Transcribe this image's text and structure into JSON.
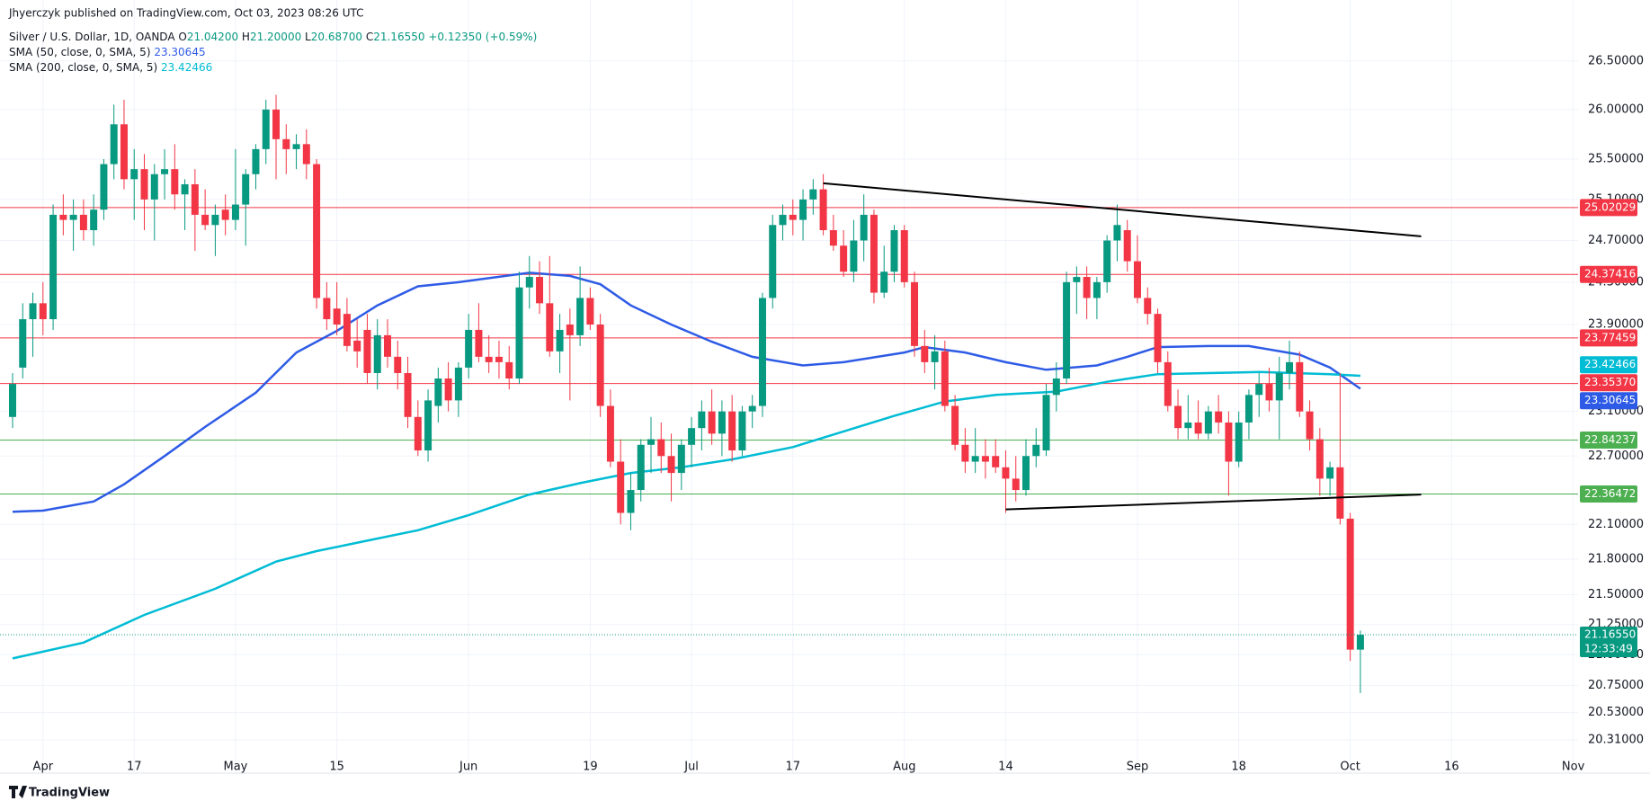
{
  "chart_data": {
    "type": "candlestick",
    "header": "Jhyerczyk published on TradingView.com, Oct 03, 2023 08:26 UTC",
    "legend": {
      "symbol": "Silver / U.S. Dollar, 1D, OANDA",
      "fields": [
        {
          "key": "O",
          "value": "21.04200"
        },
        {
          "key": "H",
          "value": "21.20000"
        },
        {
          "key": "L",
          "value": "20.68700"
        },
        {
          "key": "C",
          "value": "21.16550"
        }
      ],
      "change": "+0.12350 (+0.59%)"
    },
    "countdown": "12:33:49",
    "footer": "TradingView",
    "log": true,
    "grid": true,
    "up_color": "#089981",
    "down_color": "#f23645",
    "ylim": [
      20.19,
      27.14
    ],
    "yticks": [
      {
        "value": 26.5,
        "label": "26.50000"
      },
      {
        "value": 26,
        "label": "26.00000"
      },
      {
        "value": 25.5,
        "label": "25.50000"
      },
      {
        "value": 25.1,
        "label": "25.10000"
      },
      {
        "value": 24.7,
        "label": "24.70000"
      },
      {
        "value": 24.3,
        "label": "24.30000"
      },
      {
        "value": 23.9,
        "label": "23.90000"
      },
      {
        "value": 23.1,
        "label": "23.10000"
      },
      {
        "value": 22.7,
        "label": "22.70000"
      },
      {
        "value": 22.1,
        "label": "22.10000"
      },
      {
        "value": 21.8,
        "label": "21.80000"
      },
      {
        "value": 21.5,
        "label": "21.50000"
      },
      {
        "value": 21.25,
        "label": "21.25000"
      },
      {
        "value": 21,
        "label": "21.00000"
      },
      {
        "value": 20.75,
        "label": "20.75000"
      },
      {
        "value": 20.53,
        "label": "20.53000"
      },
      {
        "value": 20.31,
        "label": "20.31000"
      }
    ],
    "categories": [
      null,
      null,
      null,
      "Apr",
      null,
      null,
      null,
      null,
      null,
      null,
      null,
      null,
      "17",
      null,
      null,
      null,
      null,
      null,
      null,
      null,
      null,
      null,
      "May",
      null,
      null,
      null,
      null,
      null,
      null,
      null,
      null,
      null,
      "15",
      null,
      null,
      null,
      null,
      null,
      null,
      null,
      null,
      null,
      null,
      null,
      null,
      "Jun",
      null,
      null,
      null,
      null,
      null,
      null,
      null,
      null,
      null,
      null,
      null,
      "19",
      null,
      null,
      null,
      null,
      null,
      null,
      null,
      null,
      null,
      "Jul",
      null,
      null,
      null,
      null,
      null,
      null,
      null,
      null,
      null,
      "17",
      null,
      null,
      null,
      null,
      null,
      null,
      null,
      null,
      null,
      null,
      "Aug",
      null,
      null,
      null,
      null,
      null,
      null,
      null,
      null,
      null,
      "14",
      null,
      null,
      null,
      null,
      null,
      null,
      null,
      null,
      null,
      null,
      null,
      null,
      "Sep",
      null,
      null,
      null,
      null,
      null,
      null,
      null,
      null,
      null,
      "18",
      null,
      null,
      null,
      null,
      null,
      null,
      null,
      null,
      null,
      null,
      "Oct",
      null,
      null,
      null,
      null,
      null,
      null,
      null,
      null,
      null,
      "16",
      null,
      null,
      null,
      null,
      null,
      null,
      null,
      null,
      null,
      null,
      null,
      "Nov"
    ],
    "open": [
      23.05,
      23.5,
      23.95,
      24.1,
      23.95,
      24.95,
      24.9,
      24.95,
      24.8,
      25.0,
      25.45,
      25.85,
      25.3,
      25.4,
      25.1,
      25.35,
      25.4,
      25.15,
      25.25,
      24.95,
      24.85,
      25.0,
      24.9,
      25.05,
      25.35,
      25.6,
      26.0,
      25.7,
      25.6,
      25.65,
      25.45,
      24.15,
      24.05,
      24.0,
      23.75,
      23.85,
      23.45,
      23.8,
      23.6,
      23.45,
      23.05,
      22.75,
      23.15,
      23.4,
      23.2,
      23.5,
      23.85,
      23.6,
      23.6,
      23.55,
      23.4,
      24.25,
      24.35,
      24.1,
      23.65,
      23.9,
      23.8,
      24.15,
      23.9,
      23.15,
      22.65,
      22.2,
      22.4,
      22.8,
      22.85,
      22.7,
      22.55,
      22.8,
      22.95,
      23.1,
      22.9,
      23.1,
      22.75,
      23.1,
      23.15,
      24.15,
      24.85,
      24.95,
      24.9,
      25.1,
      25.2,
      24.8,
      24.65,
      24.4,
      24.7,
      24.95,
      24.2,
      24.4,
      24.8,
      24.3,
      23.7,
      23.55,
      23.65,
      23.15,
      22.8,
      22.65,
      22.7,
      22.7,
      22.6,
      22.5,
      22.4,
      22.7,
      22.75,
      23.25,
      23.4,
      24.3,
      24.35,
      24.15,
      24.3,
      24.7,
      24.8,
      24.5,
      24.15,
      24.0,
      23.55,
      23.15,
      22.95,
      23.0,
      22.9,
      23.1,
      23.0,
      22.65,
      23.0,
      23.25,
      23.35,
      23.2,
      23.45,
      23.55,
      23.1,
      22.85,
      22.5,
      22.6,
      22.15,
      21.042,
      null,
      null,
      null,
      null,
      null,
      null,
      null,
      null,
      null,
      null,
      null,
      null,
      null,
      null,
      null,
      null,
      null,
      null,
      null,
      null,
      null
    ],
    "high": [
      23.45,
      24.1,
      24.2,
      24.3,
      25.05,
      25.15,
      25.1,
      25.1,
      25.15,
      25.5,
      26.05,
      26.1,
      25.6,
      25.55,
      25.45,
      25.6,
      25.65,
      25.3,
      25.4,
      25.2,
      25.05,
      25.15,
      25.6,
      25.4,
      25.65,
      26.1,
      26.15,
      25.85,
      25.75,
      25.8,
      25.5,
      24.3,
      24.3,
      24.15,
      23.95,
      24.0,
      23.95,
      23.95,
      23.75,
      23.6,
      23.2,
      23.3,
      23.5,
      23.55,
      23.55,
      24.0,
      24.1,
      23.8,
      23.75,
      23.7,
      24.4,
      24.55,
      24.5,
      24.55,
      24.0,
      24.05,
      24.45,
      24.25,
      24.0,
      23.3,
      22.85,
      22.55,
      22.85,
      23.05,
      23.0,
      22.9,
      22.85,
      23.05,
      23.2,
      23.3,
      23.2,
      23.25,
      23.15,
      23.25,
      24.2,
      24.95,
      25.05,
      25.1,
      25.2,
      25.3,
      25.35,
      24.95,
      24.8,
      24.9,
      25.15,
      25.0,
      24.65,
      24.85,
      24.85,
      24.4,
      23.85,
      23.8,
      23.75,
      23.25,
      22.95,
      22.95,
      22.85,
      22.85,
      22.75,
      22.7,
      22.85,
      22.95,
      23.35,
      23.55,
      24.4,
      24.45,
      24.45,
      24.35,
      24.75,
      25.05,
      24.9,
      24.75,
      24.25,
      24.05,
      23.65,
      23.3,
      23.25,
      23.2,
      23.15,
      23.25,
      23.1,
      23.1,
      23.3,
      23.45,
      23.5,
      23.6,
      23.75,
      23.65,
      23.2,
      22.95,
      22.65,
      23.45,
      22.2,
      21.2,
      null,
      null,
      null,
      null,
      null,
      null,
      null,
      null,
      null,
      null,
      null,
      null,
      null,
      null,
      null,
      null,
      null,
      null,
      null,
      null,
      null
    ],
    "low": [
      22.95,
      23.4,
      23.6,
      23.8,
      23.85,
      24.75,
      24.6,
      24.7,
      24.65,
      24.9,
      25.3,
      25.2,
      24.9,
      24.8,
      24.7,
      25.1,
      25.0,
      24.8,
      24.6,
      24.8,
      24.55,
      24.75,
      24.8,
      24.65,
      25.2,
      25.45,
      25.3,
      25.35,
      25.4,
      25.3,
      24.05,
      23.85,
      23.8,
      23.65,
      23.5,
      23.35,
      23.3,
      23.5,
      23.3,
      22.95,
      22.7,
      22.65,
      23.0,
      23.1,
      23.05,
      23.4,
      23.55,
      23.45,
      23.4,
      23.3,
      23.35,
      24.05,
      24.0,
      23.6,
      23.45,
      23.2,
      23.7,
      23.85,
      23.05,
      22.6,
      22.1,
      22.05,
      22.3,
      22.55,
      22.55,
      22.3,
      22.4,
      22.6,
      22.75,
      22.8,
      22.7,
      22.65,
      22.7,
      22.95,
      23.05,
      24.05,
      24.7,
      24.75,
      24.7,
      24.95,
      24.75,
      24.6,
      24.35,
      24.3,
      24.5,
      24.1,
      24.15,
      24.3,
      24.25,
      23.6,
      23.45,
      23.3,
      23.1,
      22.75,
      22.55,
      22.55,
      22.5,
      22.55,
      22.2,
      22.3,
      22.35,
      22.6,
      22.7,
      23.1,
      23.35,
      24.0,
      23.95,
      23.95,
      24.2,
      24.5,
      24.4,
      24.1,
      23.9,
      23.45,
      23.1,
      22.85,
      22.85,
      22.85,
      22.85,
      22.9,
      22.35,
      22.6,
      22.85,
      23.05,
      23.1,
      22.85,
      23.3,
      23.05,
      22.75,
      22.35,
      22.35,
      22.1,
      20.95,
      20.687,
      null,
      null,
      null,
      null,
      null,
      null,
      null,
      null,
      null,
      null,
      null,
      null,
      null,
      null,
      null,
      null,
      null,
      null,
      null,
      null,
      null
    ],
    "close": [
      23.35,
      23.95,
      24.1,
      23.95,
      24.95,
      24.9,
      24.95,
      24.8,
      25.0,
      25.45,
      25.85,
      25.3,
      25.4,
      25.1,
      25.35,
      25.4,
      25.15,
      25.25,
      24.95,
      24.85,
      24.95,
      24.9,
      25.05,
      25.35,
      25.6,
      26.0,
      25.7,
      25.6,
      25.65,
      25.45,
      24.15,
      23.95,
      23.9,
      23.7,
      23.65,
      23.45,
      23.8,
      23.6,
      23.45,
      23.05,
      22.75,
      23.2,
      23.4,
      23.2,
      23.5,
      23.85,
      23.6,
      23.55,
      23.55,
      23.4,
      24.25,
      24.35,
      24.1,
      23.65,
      23.85,
      23.8,
      24.15,
      23.9,
      23.15,
      22.65,
      22.2,
      22.4,
      22.8,
      22.85,
      22.7,
      22.55,
      22.8,
      22.95,
      23.1,
      22.9,
      23.1,
      22.75,
      23.1,
      23.15,
      24.15,
      24.85,
      24.95,
      24.9,
      25.1,
      25.2,
      24.8,
      24.65,
      24.4,
      24.7,
      24.95,
      24.2,
      24.4,
      24.8,
      24.3,
      23.7,
      23.55,
      23.65,
      23.15,
      22.8,
      22.65,
      22.7,
      22.65,
      22.6,
      22.5,
      22.4,
      22.7,
      22.8,
      23.25,
      23.4,
      24.3,
      24.35,
      24.15,
      24.3,
      24.7,
      24.85,
      24.5,
      24.15,
      24.0,
      23.55,
      23.15,
      22.95,
      23.0,
      22.9,
      23.1,
      23.0,
      22.65,
      23.0,
      23.25,
      23.35,
      23.2,
      23.45,
      23.55,
      23.1,
      22.85,
      22.5,
      22.6,
      22.15,
      21.042,
      21.1655,
      null,
      null,
      null,
      null,
      null,
      null,
      null,
      null,
      null,
      null,
      null,
      null,
      null,
      null,
      null,
      null,
      null,
      null,
      null,
      null,
      null
    ],
    "series": [
      {
        "name": "SMA (50, close, 0, SMA, 5)",
        "color": "#2e5be6",
        "x": [
          0,
          3,
          8,
          11,
          15,
          19,
          24,
          28,
          32,
          36,
          40,
          44,
          51,
          55,
          58,
          61,
          65,
          69,
          73,
          78,
          82,
          88,
          90,
          94,
          98,
          102,
          107,
          110,
          113,
          118,
          122,
          127,
          130,
          133
        ],
        "values": [
          22.21,
          22.22,
          22.3,
          22.45,
          22.7,
          22.96,
          23.27,
          23.64,
          23.84,
          24.08,
          24.26,
          24.3,
          24.39,
          24.36,
          24.28,
          24.08,
          23.9,
          23.74,
          23.6,
          23.52,
          23.55,
          23.64,
          23.69,
          23.64,
          23.55,
          23.48,
          23.52,
          23.6,
          23.69,
          23.7,
          23.7,
          23.62,
          23.5,
          23.30645
        ]
      },
      {
        "name": "SMA (200, close, 0, SMA, 5)",
        "color": "#00bcd4",
        "x": [
          0,
          7,
          13,
          20,
          26,
          30,
          35,
          40,
          45,
          51,
          56,
          61,
          66,
          71,
          77,
          82,
          87,
          92,
          97,
          103,
          108,
          113,
          118,
          123,
          130,
          133
        ],
        "values": [
          20.97,
          21.1,
          21.33,
          21.55,
          21.78,
          21.87,
          21.96,
          22.05,
          22.18,
          22.36,
          22.46,
          22.55,
          22.6,
          22.67,
          22.78,
          22.92,
          23.06,
          23.19,
          23.25,
          23.28,
          23.37,
          23.44,
          23.45,
          23.46,
          23.44,
          23.42466
        ]
      }
    ],
    "levels": [
      {
        "value": 25.02029,
        "label": "25.02029",
        "color": "#f23645"
      },
      {
        "value": 24.37416,
        "label": "24.37416",
        "color": "#f23645"
      },
      {
        "value": 23.77459,
        "label": "23.77459",
        "color": "#f23645"
      },
      {
        "value": 23.3537,
        "label": "23.35370",
        "color": "#f23645"
      },
      {
        "value": 22.84237,
        "label": "22.84237",
        "color": "#4caf50"
      },
      {
        "value": 22.36472,
        "label": "22.36472",
        "color": "#4caf50"
      }
    ],
    "trendlines": [
      {
        "x": [
          80,
          139
        ],
        "values": [
          25.26,
          24.74
        ]
      },
      {
        "x": [
          98,
          139
        ],
        "values": [
          22.23,
          22.36
        ]
      }
    ]
  }
}
